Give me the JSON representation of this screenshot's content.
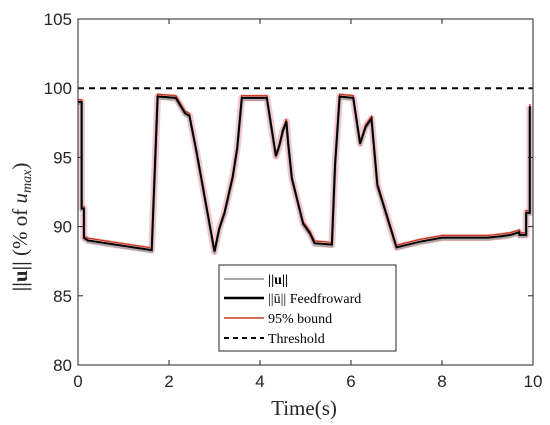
{
  "chart_data": {
    "type": "line",
    "xlabel": "Time(s)",
    "ylabel": "||u|| (% of u_max)",
    "ylabel_parts": {
      "norm": "||u||",
      "mid": " (% of ",
      "u": "u",
      "sub": "max",
      "close": ")"
    },
    "xlim": [
      0,
      10
    ],
    "ylim": [
      80,
      105
    ],
    "x_ticks": [
      "0",
      "2",
      "4",
      "6",
      "8",
      "10"
    ],
    "y_ticks": [
      "80",
      "85",
      "90",
      "95",
      "100",
      "105"
    ],
    "grid": false,
    "legend_position": "bottom-center",
    "legend": [
      "||u||",
      "||ū|| Feedfroward",
      "95% bound",
      "Threshold"
    ],
    "threshold": 100,
    "series": [
      {
        "name": "||ū|| Feedfroward",
        "color": "#000000",
        "x": [
          0.0,
          0.08,
          0.08,
          0.13,
          0.13,
          0.22,
          0.22,
          1.62,
          1.62,
          1.75,
          1.75,
          2.15,
          2.15,
          2.35,
          2.35,
          2.45,
          2.45,
          2.6,
          2.6,
          3.0,
          3.0,
          3.1,
          3.1,
          3.22,
          3.22,
          3.4,
          3.4,
          3.5,
          3.5,
          3.6,
          3.6,
          4.15,
          4.15,
          4.35,
          4.35,
          4.42,
          4.42,
          4.5,
          4.5,
          4.58,
          4.58,
          4.62,
          4.62,
          4.7,
          4.7,
          4.95,
          4.95,
          5.1,
          5.1,
          5.2,
          5.2,
          5.58,
          5.58,
          5.65,
          5.65,
          5.75,
          5.75,
          6.05,
          6.05,
          6.2,
          6.2,
          6.32,
          6.32,
          6.45,
          6.45,
          6.58,
          6.58,
          7.0,
          7.5,
          8.0,
          9.0,
          9.3,
          9.5,
          9.7,
          9.7,
          9.85,
          9.85,
          9.93,
          9.93
        ],
        "y": [
          99.0,
          99.0,
          91.3,
          91.3,
          89.2,
          89.0,
          89.0,
          88.3,
          88.3,
          99.4,
          99.4,
          99.3,
          99.3,
          98.2,
          98.2,
          98.0,
          98.0,
          95.5,
          95.5,
          88.2,
          88.2,
          89.8,
          89.8,
          91.0,
          91.0,
          93.6,
          93.6,
          95.7,
          95.7,
          99.3,
          99.3,
          99.3,
          99.3,
          95.1,
          95.1,
          95.8,
          95.8,
          96.9,
          96.9,
          97.6,
          97.6,
          96.0,
          96.0,
          93.5,
          93.5,
          90.2,
          90.2,
          89.5,
          89.5,
          88.8,
          88.8,
          88.7,
          88.7,
          94.5,
          94.5,
          99.4,
          99.4,
          99.3,
          99.3,
          96.0,
          96.0,
          97.2,
          97.2,
          97.8,
          97.8,
          93.0,
          93.0,
          88.5,
          88.9,
          89.2,
          89.2,
          89.3,
          89.4,
          89.6,
          89.4,
          89.4,
          91.0,
          91.0,
          98.7
        ]
      }
    ]
  }
}
